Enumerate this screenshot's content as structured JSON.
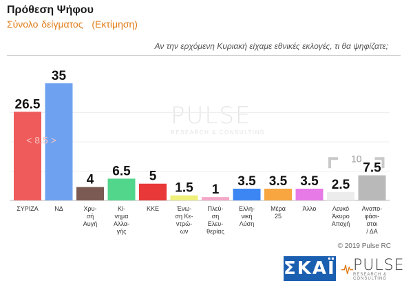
{
  "header": {
    "title": "Πρόθεση Ψήφου",
    "subtitle": "Σύνολο δείγματος",
    "subtitle_note": "(Εκτίμηση)",
    "question": "Αν την ερχόμενη Κυριακή είχαμε εθνικές εκλογές, τι θα ψηφίζατε;"
  },
  "watermark": {
    "name": "PULSE",
    "sub": "RESEARCH & CONSULTING"
  },
  "footer": {
    "copyright": "© 2019 Pulse RC"
  },
  "logos": {
    "skai": "ΣΚΑΪ",
    "pulse": "PULSE",
    "pulse_sub": "RESEARCH & CONSULTING"
  },
  "chart_data": {
    "type": "bar",
    "title": "Πρόθεση Ψήφου",
    "categories": [
      "ΣΥΡΙΖΑ",
      "ΝΔ",
      "Χρυσή Αυγή",
      "Κίνημα Αλλαγής",
      "ΚΚΕ",
      "Ένωση Κεντρώων",
      "Πλεύση Ελευθερίας",
      "Ελληνική Λύση",
      "Μέρα 25",
      "Άλλο",
      "Λευκό Άκυρο Αποχή",
      "Αναποφάσιστοι / ΔΑ"
    ],
    "tick_labels": [
      [
        "ΣΥΡΙΖΑ"
      ],
      [
        "ΝΔ"
      ],
      [
        "Χρυ-",
        "σή",
        "Αυγή"
      ],
      [
        "Κί-",
        "νημα",
        "Αλλα-",
        "γής"
      ],
      [
        "ΚΚΕ"
      ],
      [
        "Ένω-",
        "ση Κε-",
        "ντρώ-",
        "ων"
      ],
      [
        "Πλεύ-",
        "ση",
        "Ελευ-",
        "θερίας"
      ],
      [
        "Ελλη-",
        "νική",
        "Λύση"
      ],
      [
        "Μέρα",
        "25"
      ],
      [
        "Άλλο"
      ],
      [
        "Λευκό",
        "Άκυρο",
        "Αποχή"
      ],
      [
        "Αναπο-",
        "φάσι-",
        "στοι",
        "/ ΔΑ"
      ]
    ],
    "values": [
      26.5,
      35,
      4,
      6.5,
      5,
      1.5,
      1,
      3.5,
      3.5,
      3.5,
      2.5,
      7.5
    ],
    "labels": [
      "26.5",
      "35",
      "4",
      "6.5",
      "5",
      "1.5",
      "1",
      "3.5",
      "3.5",
      "3.5",
      "2.5",
      "7.5"
    ],
    "colors": [
      "#ef5b5b",
      "#6ea2f0",
      "#7a5a52",
      "#52d68c",
      "#e83838",
      "#eef07a",
      "#f5a7c7",
      "#3b86f2",
      "#f7a640",
      "#e77ae6",
      "#ececec",
      "#b9b9b9"
    ],
    "annotations": {
      "gap_label": "< 8.5 >",
      "bracket_label": "10"
    },
    "ylim": [
      0,
      35
    ],
    "grid": true,
    "xlabel": "",
    "ylabel": ""
  }
}
